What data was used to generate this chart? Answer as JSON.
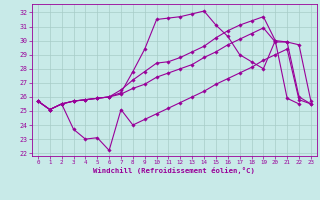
{
  "xlabel": "Windchill (Refroidissement éolien,°C)",
  "bg_color": "#c8eae8",
  "line_color": "#990099",
  "grid_color": "#a8ccc8",
  "ylim": [
    21.8,
    32.6
  ],
  "xlim": [
    -0.5,
    23.5
  ],
  "yticks": [
    22,
    23,
    24,
    25,
    26,
    27,
    28,
    29,
    30,
    31,
    32
  ],
  "xticks": [
    0,
    1,
    2,
    3,
    4,
    5,
    6,
    7,
    8,
    9,
    10,
    11,
    12,
    13,
    14,
    15,
    16,
    17,
    18,
    19,
    20,
    21,
    22,
    23
  ],
  "series": [
    {
      "x": [
        0,
        1,
        2,
        3,
        4,
        5,
        6,
        7,
        8,
        9,
        10,
        11,
        12,
        13,
        14,
        15,
        16,
        17,
        18,
        19,
        20,
        21,
        22,
        23
      ],
      "y": [
        25.7,
        25.1,
        25.5,
        23.7,
        23.0,
        23.1,
        22.2,
        25.1,
        24.0,
        24.4,
        24.8,
        25.2,
        25.6,
        26.0,
        26.4,
        26.9,
        27.3,
        27.7,
        28.1,
        28.6,
        29.0,
        29.4,
        25.8,
        25.5
      ]
    },
    {
      "x": [
        0,
        1,
        2,
        3,
        4,
        5,
        6,
        7,
        8,
        9,
        10,
        11,
        12,
        13,
        14,
        15,
        16,
        17,
        18,
        19,
        20,
        21,
        22
      ],
      "y": [
        25.7,
        25.1,
        25.5,
        25.7,
        25.8,
        25.9,
        26.0,
        26.3,
        27.8,
        29.4,
        31.5,
        31.6,
        31.7,
        31.9,
        32.1,
        31.1,
        30.3,
        29.0,
        28.5,
        28.0,
        30.0,
        25.9,
        25.5
      ]
    },
    {
      "x": [
        0,
        1,
        2,
        3,
        4,
        5,
        6,
        7,
        8,
        9,
        10,
        11,
        12,
        13,
        14,
        15,
        16,
        17,
        18,
        19,
        20,
        21,
        22,
        23
      ],
      "y": [
        25.7,
        25.1,
        25.5,
        25.7,
        25.8,
        25.9,
        26.0,
        26.5,
        27.2,
        27.8,
        28.4,
        28.5,
        28.8,
        29.2,
        29.6,
        30.2,
        30.7,
        31.1,
        31.4,
        31.7,
        30.0,
        29.9,
        29.7,
        25.7
      ]
    },
    {
      "x": [
        0,
        1,
        2,
        3,
        4,
        5,
        6,
        7,
        8,
        9,
        10,
        11,
        12,
        13,
        14,
        15,
        16,
        17,
        18,
        19,
        20,
        21,
        22,
        23
      ],
      "y": [
        25.7,
        25.1,
        25.5,
        25.7,
        25.8,
        25.9,
        26.0,
        26.2,
        26.6,
        26.9,
        27.4,
        27.7,
        28.0,
        28.3,
        28.8,
        29.2,
        29.7,
        30.1,
        30.5,
        30.9,
        29.9,
        29.9,
        26.0,
        25.5
      ]
    }
  ]
}
